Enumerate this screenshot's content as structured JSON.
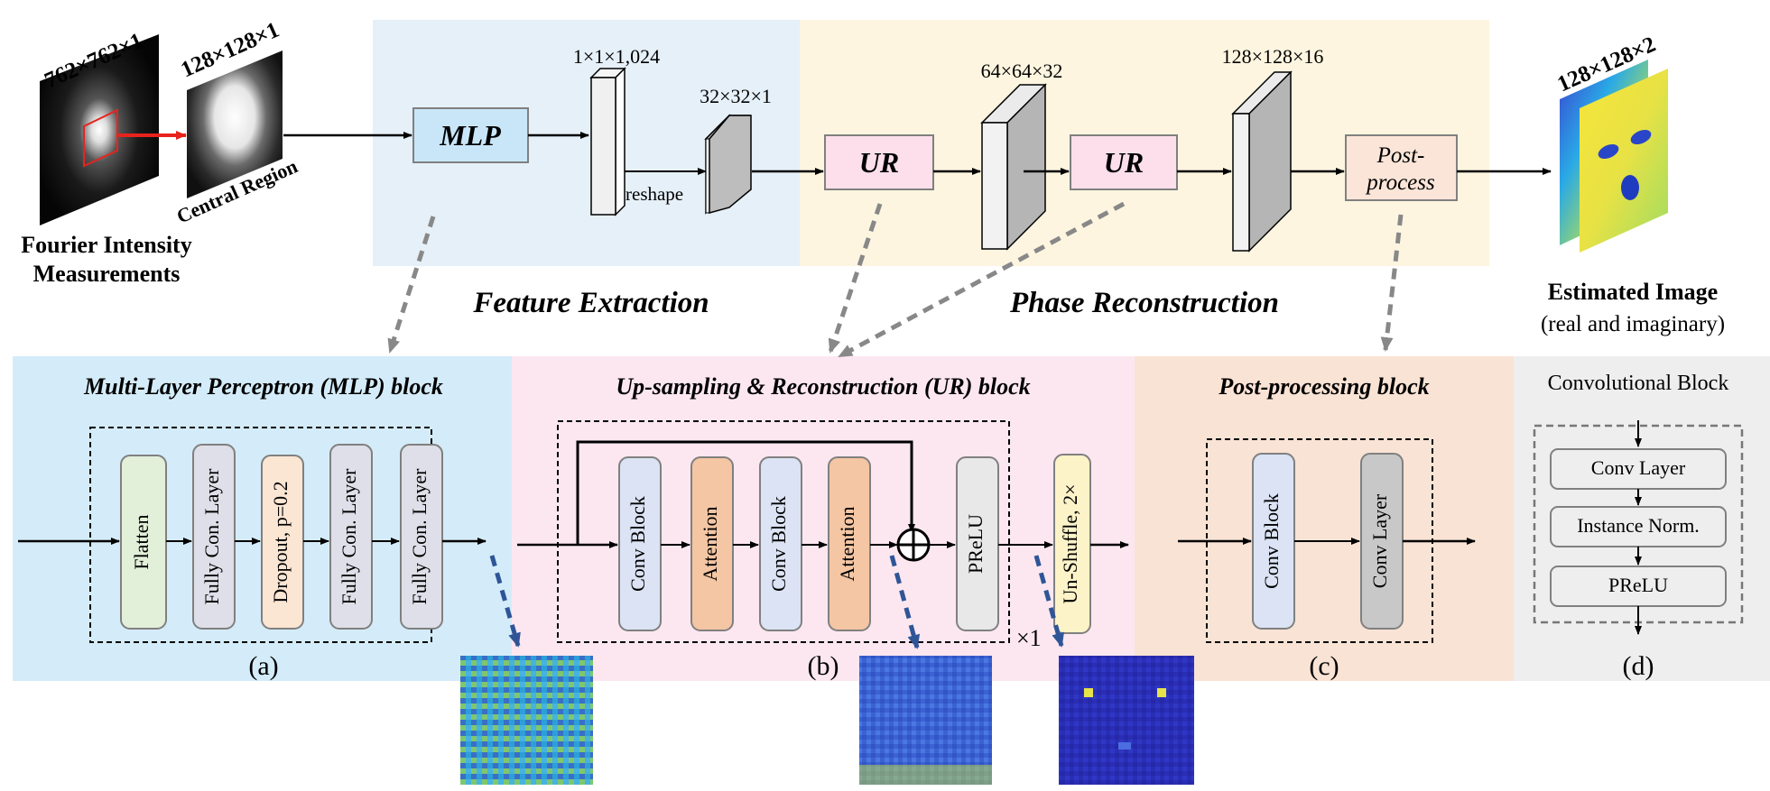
{
  "top": {
    "input_size": "762×762×1",
    "crop_size": "128×128×1",
    "central_region": "Central Region",
    "input_caption_line1": "Fourier Intensity",
    "input_caption_line2": "Measurements",
    "mlp_label": "MLP",
    "dim_1x1x1024": "1×1×1,024",
    "reshape_label": "reshape",
    "dim_32x32x1": "32×32×1",
    "ur_label_1": "UR",
    "dim_64x64x32": "64×64×32",
    "ur_label_2": "UR",
    "dim_128x128x16": "128×128×16",
    "post_line1": "Post-",
    "post_line2": "process",
    "output_size": "128×128×2",
    "feature_extraction": "Feature Extraction",
    "phase_reconstruction": "Phase Reconstruction",
    "estimated_title": "Estimated Image",
    "estimated_sub": "(real and imaginary)"
  },
  "panel_a": {
    "title": "Multi-Layer Perceptron (MLP) block",
    "layers": [
      "Flatten",
      "Fully Con. Layer",
      "Dropout, p=0.2",
      "Fully Con. Layer",
      "Fully Con. Layer"
    ],
    "label": "(a)"
  },
  "panel_b": {
    "title": "Up-sampling & Reconstruction (UR) block",
    "layers": [
      "Conv Block",
      "Attention",
      "Conv Block",
      "Attention",
      "PReLU",
      "Un-Shuffle, 2×"
    ],
    "repeat": "×1",
    "label": "(b)"
  },
  "panel_c": {
    "title": "Post-processing block",
    "layers": [
      "Conv Block",
      "Conv Layer"
    ],
    "label": "(c)"
  },
  "panel_d": {
    "title": "Convolutional Block",
    "layers": [
      "Conv Layer",
      "Instance Norm.",
      "PReLU"
    ],
    "label": "(d)"
  },
  "colors": {
    "feature_bg": "#e6f0f8",
    "phase_bg": "#fdf5e0",
    "mlp_panel_bg": "#d4ecf9",
    "ur_panel_bg": "#fce7f0",
    "post_panel_bg": "#f9e3d5",
    "conv_panel_bg": "#eeeeee",
    "flatten_fill": "#e2efd9",
    "fc_fill": "#dedfe8",
    "dropout_fill": "#fbe5d3",
    "convblock_fill": "#dbe3f4",
    "attention_fill": "#f4c6a4",
    "prelu_fill": "#e8e8e8",
    "unshuffle_fill": "#fdf3c8",
    "convlayer_fill": "#c8c8c8",
    "mlp_box_fill": "#c9e6f9",
    "ur_box_fill": "#fcdfea",
    "post_box_fill": "#fbe5d8",
    "arrow_dashed": "#888888",
    "arrow_blue_dashed": "#2f5597",
    "arrow_red": "#e8231d"
  }
}
